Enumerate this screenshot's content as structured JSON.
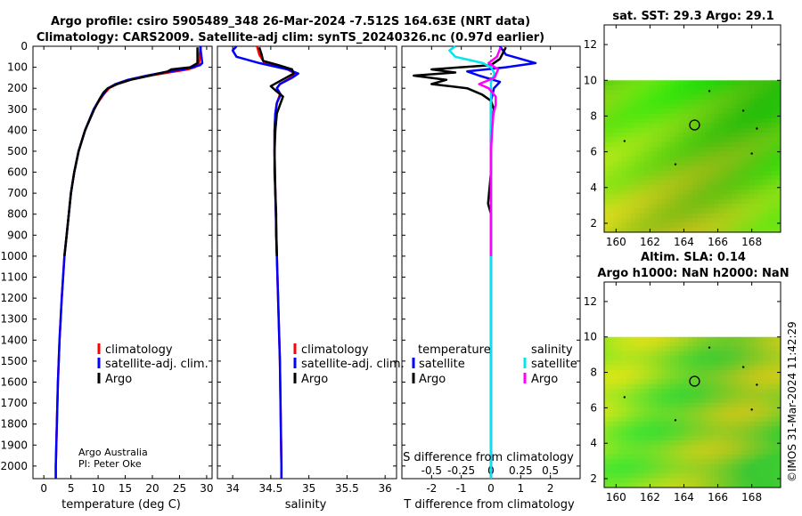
{
  "header": {
    "line1": "Argo profile: csiro 5905489_348 26-Mar-2024 -7.512S 164.63E (NRT data)",
    "line2": "Climatology: CARS2009. Satellite-adj clim: synTS_20240326.nc (0.97d earlier)"
  },
  "credits": {
    "line1": "Argo Australia",
    "line2": "PI: Peter Oke"
  },
  "timestamp": "©IMOS 31-Mar-2024 11:42:29",
  "colors": {
    "climatology": "#ff0000",
    "satellite": "#0000ff",
    "argo": "#000000",
    "sal_satellite": "#00e5ee",
    "sal_argo": "#ff00ff"
  },
  "chart_data": [
    {
      "type": "line",
      "name": "temperature",
      "xlabel": "temperature (deg C)",
      "ylabel": "",
      "xlim": [
        -2,
        31
      ],
      "ylim": [
        2060,
        0
      ],
      "xticks": [
        0,
        5,
        10,
        15,
        20,
        25,
        30
      ],
      "yticks": [
        0,
        100,
        200,
        300,
        400,
        500,
        600,
        700,
        800,
        900,
        1000,
        1100,
        1200,
        1300,
        1400,
        1500,
        1600,
        1700,
        1800,
        1900,
        2000
      ],
      "legend": [
        "climatology",
        "satellite-adj. clim.",
        "Argo"
      ],
      "series": [
        {
          "name": "climatology",
          "color": "#ff0000",
          "depth": [
            0,
            10,
            20,
            40,
            60,
            80,
            90,
            100,
            110,
            125,
            140,
            160,
            180,
            200,
            230,
            260,
            300,
            400,
            500,
            600,
            700,
            800,
            900,
            1000,
            1200,
            1400,
            1600,
            1800,
            2000,
            2060
          ],
          "values": [
            28.8,
            28.8,
            28.8,
            28.7,
            28.7,
            28.6,
            28.4,
            27.8,
            26.5,
            23.0,
            19.5,
            16.0,
            13.5,
            12.0,
            11.0,
            10.2,
            9.2,
            7.6,
            6.4,
            5.6,
            5.0,
            4.6,
            4.2,
            3.8,
            3.3,
            2.9,
            2.6,
            2.4,
            2.2,
            2.2
          ]
        },
        {
          "name": "satellite-adj. clim.",
          "color": "#0000ff",
          "depth": [
            0,
            20,
            40,
            60,
            80,
            90,
            100,
            110,
            125,
            140,
            160,
            180,
            200,
            230,
            260,
            300,
            400,
            500,
            600,
            700,
            800,
            900,
            1000,
            1200,
            1400,
            1600,
            1800,
            2000,
            2060
          ],
          "values": [
            28.9,
            28.9,
            29.0,
            29.1,
            29.2,
            28.8,
            27.5,
            25.5,
            22.0,
            19.0,
            15.5,
            13.2,
            11.8,
            10.9,
            10.1,
            9.2,
            7.6,
            6.4,
            5.6,
            5.0,
            4.6,
            4.2,
            3.8,
            3.3,
            2.9,
            2.6,
            2.4,
            2.2,
            2.2
          ]
        },
        {
          "name": "Argo",
          "color": "#000000",
          "depth": [
            5,
            20,
            40,
            60,
            80,
            100,
            110,
            120,
            140,
            160,
            180,
            200,
            220,
            250,
            300,
            400,
            500,
            600,
            700,
            800,
            900,
            1000
          ],
          "values": [
            28.3,
            28.3,
            28.3,
            28.3,
            28.3,
            27.0,
            23.5,
            22.8,
            19.5,
            16.0,
            13.5,
            11.8,
            11.0,
            10.3,
            9.3,
            7.6,
            6.4,
            5.6,
            5.0,
            4.6,
            4.2,
            3.8
          ]
        }
      ]
    },
    {
      "type": "line",
      "name": "salinity",
      "xlabel": "salinity",
      "xlim": [
        33.8,
        36.15
      ],
      "ylim": [
        2060,
        0
      ],
      "xticks": [
        34,
        34.5,
        35,
        35.5,
        36
      ],
      "xticklabels": [
        "34",
        "34.5",
        "35",
        "35.5",
        "36"
      ],
      "legend": [
        "climatology",
        "satellite-adj. clim.",
        "Argo"
      ],
      "series": [
        {
          "name": "climatology",
          "color": "#ff0000",
          "depth": [
            0,
            40,
            80,
            110,
            130,
            150,
            180,
            200,
            230,
            270,
            320,
            400,
            500,
            700,
            1000,
            1500,
            2000,
            2060
          ],
          "values": [
            34.32,
            34.35,
            34.42,
            34.72,
            34.82,
            34.76,
            34.62,
            34.58,
            34.62,
            34.58,
            34.56,
            34.55,
            34.55,
            34.56,
            34.58,
            34.62,
            34.64,
            34.64
          ]
        },
        {
          "name": "satellite-adj. clim.",
          "color": "#0000ff",
          "depth": [
            0,
            20,
            50,
            80,
            110,
            130,
            150,
            180,
            200,
            230,
            270,
            320,
            400,
            500,
            700,
            1000,
            1500,
            2000,
            2060
          ],
          "values": [
            34.05,
            34.0,
            34.05,
            34.35,
            34.72,
            34.86,
            34.78,
            34.62,
            34.58,
            34.63,
            34.58,
            34.56,
            34.55,
            34.55,
            34.56,
            34.58,
            34.62,
            34.64,
            34.64
          ]
        },
        {
          "name": "Argo",
          "color": "#000000",
          "depth": [
            5,
            40,
            70,
            90,
            110,
            130,
            160,
            190,
            210,
            240,
            280,
            320,
            400,
            500,
            600,
            700,
            800,
            900,
            1000
          ],
          "values": [
            34.35,
            34.38,
            34.4,
            34.6,
            34.78,
            34.8,
            34.65,
            34.5,
            34.56,
            34.66,
            34.62,
            34.58,
            34.56,
            34.55,
            34.55,
            34.56,
            34.57,
            34.57,
            34.58
          ]
        }
      ]
    },
    {
      "type": "line",
      "name": "differences",
      "xlabel": "T difference from climatology",
      "xlabel_top": "S difference from climatology",
      "xlim": [
        -3.0,
        3.0
      ],
      "ylim": [
        2060,
        0
      ],
      "xticks": [
        -2,
        -1,
        0,
        1,
        2
      ],
      "sal_ticks": [
        -0.5,
        -0.25,
        0,
        0.25,
        0.5
      ],
      "sal_ticklabels": [
        "-0.5",
        "-0.25",
        "0",
        "0.25",
        "0.5"
      ],
      "legend_headers": [
        "temperature",
        "salinity"
      ],
      "legend_temperature": [
        "satellite",
        "Argo"
      ],
      "legend_salinity": [
        "satellite",
        "Argo"
      ],
      "series": [
        {
          "name": "T satellite",
          "color": "#0000ff",
          "depth": [
            0,
            40,
            80,
            100,
            120,
            140,
            170,
            200,
            260,
            400,
            600,
            1000,
            1500,
            2060
          ],
          "values": [
            0.3,
            0.5,
            1.5,
            0.5,
            -0.8,
            -0.4,
            0.3,
            0.1,
            0,
            0,
            0,
            0,
            0,
            0
          ]
        },
        {
          "name": "T Argo",
          "color": "#000000",
          "depth": [
            5,
            60,
            90,
            110,
            125,
            140,
            160,
            180,
            200,
            230,
            260,
            300,
            400,
            500,
            600,
            750,
            800,
            850,
            1000
          ],
          "values": [
            0.5,
            0.3,
            0.0,
            -2.0,
            -1.2,
            -2.6,
            -1.5,
            -2.0,
            -0.8,
            -0.3,
            0,
            0.1,
            0,
            0,
            0,
            -0.1,
            0,
            0,
            0
          ]
        },
        {
          "name": "S satellite",
          "color": "#00e5ee",
          "depth": [
            0,
            20,
            50,
            80,
            100,
            130,
            170,
            200,
            260,
            400,
            600,
            1000,
            1500,
            2060
          ],
          "values": [
            -0.3,
            -0.35,
            -0.3,
            -0.07,
            0.0,
            0.03,
            0.0,
            0.0,
            0,
            0,
            0,
            0,
            0,
            0
          ]
        },
        {
          "name": "S Argo",
          "color": "#ff00ff",
          "depth": [
            5,
            50,
            80,
            110,
            150,
            180,
            200,
            240,
            280,
            320,
            400,
            500,
            600,
            700,
            800,
            900,
            1000
          ],
          "values": [
            0.08,
            0.05,
            -0.02,
            0.06,
            0.03,
            -0.1,
            -0.02,
            0.04,
            0.04,
            0.02,
            0.01,
            0.0,
            0.0,
            0.0,
            0.0,
            0.0,
            0.0
          ]
        }
      ]
    },
    {
      "type": "heatmap",
      "name": "sst-map",
      "title": "sat. SST: 29.3  Argo: 29.1",
      "xlim": [
        159.3,
        169.7
      ],
      "ylim": [
        1.5,
        13.1
      ],
      "xticks": [
        160,
        162,
        164,
        166,
        168
      ],
      "yticks": [
        2,
        4,
        6,
        8,
        10,
        12
      ],
      "data_lat_range": [
        1.5,
        10
      ],
      "float_position": {
        "lon": 164.63,
        "lat": 7.5
      }
    },
    {
      "type": "heatmap",
      "name": "sla-map",
      "title_line1": "Altim. SLA: 0.14",
      "title_line2": "Argo h1000: NaN h2000: NaN",
      "xlim": [
        159.3,
        169.7
      ],
      "ylim": [
        1.5,
        13.1
      ],
      "xticks": [
        160,
        162,
        164,
        166,
        168
      ],
      "yticks": [
        2,
        4,
        6,
        8,
        10,
        12
      ],
      "data_lat_range": [
        1.5,
        10
      ],
      "float_position": {
        "lon": 164.63,
        "lat": 7.5
      }
    }
  ]
}
